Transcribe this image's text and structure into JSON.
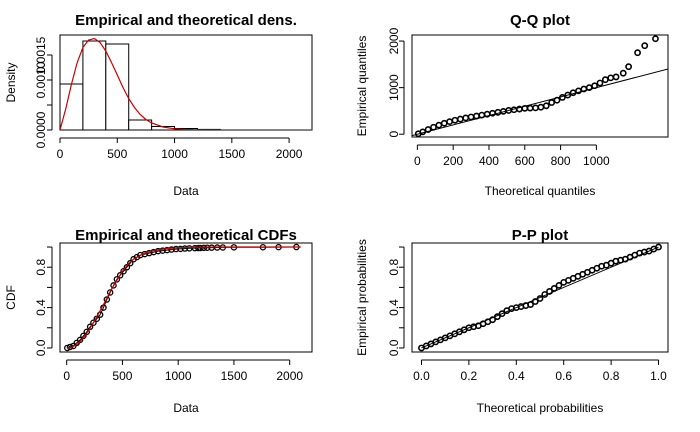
{
  "chart_data": [
    {
      "id": "dens",
      "type": "bar",
      "title": "Empirical and theoretical dens.",
      "xlabel": "Data",
      "ylabel": "Density",
      "xlim": [
        0,
        2200
      ],
      "ylim": [
        0,
        0.0019
      ],
      "xticks": [
        0,
        500,
        1000,
        1500,
        2000
      ],
      "xtick_labels": [
        "0",
        "500",
        "1000",
        "1500",
        "2000"
      ],
      "yticks": [
        0,
        0.0005,
        0.001,
        0.0015
      ],
      "ytick_labels": [
        "0.0000",
        "",
        "0.0010",
        "0.0015"
      ],
      "bins": [
        {
          "x0": 0,
          "x1": 200,
          "density": 0.00092
        },
        {
          "x0": 200,
          "x1": 400,
          "density": 0.00178
        },
        {
          "x0": 400,
          "x1": 600,
          "density": 0.00172
        },
        {
          "x0": 600,
          "x1": 800,
          "density": 0.0002
        },
        {
          "x0": 800,
          "x1": 1000,
          "density": 7e-05
        },
        {
          "x0": 1000,
          "x1": 1200,
          "density": 3e-05
        },
        {
          "x0": 1200,
          "x1": 1400,
          "density": 1.2e-05
        }
      ],
      "density_curve": {
        "color": "#cc0000",
        "x": [
          0,
          50,
          100,
          150,
          200,
          250,
          300,
          350,
          400,
          450,
          500,
          550,
          600,
          650,
          700,
          750,
          800,
          900,
          1000,
          1100,
          1200,
          1400,
          1600,
          1800,
          2000,
          2200
        ],
        "y": [
          0,
          0.00042,
          0.00092,
          0.00135,
          0.00165,
          0.0018,
          0.00183,
          0.00175,
          0.00158,
          0.00135,
          0.0011,
          0.00085,
          0.00063,
          0.00045,
          0.00031,
          0.00021,
          0.00014,
          6e-05,
          2.5e-05,
          1e-05,
          4e-06,
          8e-07,
          0,
          0,
          0,
          0
        ]
      }
    },
    {
      "id": "qq",
      "type": "scatter",
      "title": "Q-Q plot",
      "xlabel": "Theoretical quantiles",
      "ylabel": "Empirical quantiles",
      "xlim": [
        -30,
        1400
      ],
      "ylim": [
        -60,
        2130
      ],
      "xticks": [
        0,
        200,
        400,
        600,
        800,
        1000
      ],
      "xtick_labels": [
        "0",
        "200",
        "400",
        "600",
        "800",
        "1000"
      ],
      "yticks": [
        0,
        1000,
        2000
      ],
      "ytick_labels": [
        "0",
        "1000",
        "2000"
      ],
      "line": {
        "x": [
          -30,
          1400
        ],
        "y": [
          -30,
          1400
        ]
      },
      "points": {
        "x": [
          5,
          30,
          60,
          90,
          120,
          150,
          180,
          210,
          240,
          270,
          300,
          330,
          360,
          390,
          420,
          450,
          480,
          510,
          540,
          570,
          600,
          630,
          660,
          690,
          720,
          750,
          780,
          810,
          840,
          870,
          900,
          930,
          960,
          990,
          1020,
          1050,
          1080,
          1110,
          1150,
          1180,
          1230,
          1270,
          1330
        ],
        "y": [
          10,
          50,
          100,
          150,
          195,
          235,
          270,
          300,
          325,
          350,
          370,
          390,
          410,
          430,
          450,
          470,
          490,
          510,
          525,
          540,
          555,
          560,
          565,
          580,
          610,
          680,
          730,
          790,
          840,
          890,
          930,
          970,
          1000,
          1040,
          1100,
          1170,
          1210,
          1230,
          1310,
          1450,
          1750,
          1900,
          2050
        ]
      }
    },
    {
      "id": "cdf",
      "type": "line",
      "title": "Empirical and theoretical CDFs",
      "xlabel": "Data",
      "ylabel": "CDF",
      "xlim": [
        -60,
        2200
      ],
      "ylim": [
        -0.04,
        1.04
      ],
      "xticks": [
        0,
        500,
        1000,
        1500,
        2000
      ],
      "xtick_labels": [
        "0",
        "500",
        "1000",
        "1500",
        "2000"
      ],
      "yticks": [
        0,
        0.2,
        0.4,
        0.6,
        0.8,
        1.0
      ],
      "ytick_labels": [
        "0.0",
        "",
        "0.4",
        "",
        "0.8",
        ""
      ],
      "theoretical": {
        "color": "#cc0000",
        "x": [
          0,
          50,
          100,
          150,
          200,
          250,
          300,
          350,
          400,
          450,
          500,
          550,
          600,
          700,
          800,
          900,
          1000,
          1100,
          1200,
          1400,
          1600,
          1800,
          2100
        ],
        "y": [
          0,
          0.01,
          0.04,
          0.1,
          0.18,
          0.27,
          0.37,
          0.47,
          0.58,
          0.67,
          0.76,
          0.83,
          0.88,
          0.94,
          0.97,
          0.985,
          0.993,
          0.997,
          0.999,
          1.0,
          1.0,
          1.0,
          1.0
        ]
      },
      "empirical": {
        "x": [
          5,
          30,
          60,
          90,
          120,
          150,
          180,
          210,
          240,
          270,
          300,
          330,
          360,
          390,
          420,
          450,
          480,
          510,
          540,
          570,
          600,
          630,
          660,
          700,
          740,
          780,
          820,
          860,
          900,
          940,
          980,
          1020,
          1060,
          1100,
          1150,
          1180,
          1200,
          1230,
          1260,
          1300,
          1350,
          1400,
          1500,
          1760,
          1900,
          2060
        ],
        "y": [
          0.0,
          0.01,
          0.02,
          0.05,
          0.08,
          0.12,
          0.16,
          0.21,
          0.25,
          0.29,
          0.33,
          0.4,
          0.48,
          0.55,
          0.62,
          0.68,
          0.72,
          0.76,
          0.8,
          0.84,
          0.88,
          0.9,
          0.92,
          0.93,
          0.94,
          0.95,
          0.96,
          0.965,
          0.97,
          0.975,
          0.98,
          0.982,
          0.985,
          0.987,
          0.989,
          0.99,
          0.991,
          0.992,
          0.993,
          0.994,
          0.995,
          0.996,
          0.997,
          0.998,
          0.999,
          1.0
        ]
      }
    },
    {
      "id": "pp",
      "type": "scatter",
      "title": "P-P plot",
      "xlabel": "Theoretical probabilities",
      "ylabel": "Empirical probabilities",
      "xlim": [
        -0.04,
        1.04
      ],
      "ylim": [
        -0.04,
        1.04
      ],
      "xticks": [
        0,
        0.2,
        0.4,
        0.6,
        0.8,
        1.0
      ],
      "xtick_labels": [
        "0.0",
        "0.2",
        "0.4",
        "0.6",
        "0.8",
        "1.0"
      ],
      "yticks": [
        0,
        0.2,
        0.4,
        0.6,
        0.8,
        1.0
      ],
      "ytick_labels": [
        "0.0",
        "",
        "0.4",
        "",
        "0.8",
        ""
      ],
      "line": {
        "x": [
          0,
          1
        ],
        "y": [
          0,
          1
        ]
      },
      "points": {
        "x": [
          0.0,
          0.02,
          0.04,
          0.06,
          0.08,
          0.1,
          0.12,
          0.14,
          0.16,
          0.18,
          0.2,
          0.22,
          0.24,
          0.26,
          0.28,
          0.3,
          0.32,
          0.34,
          0.36,
          0.38,
          0.4,
          0.42,
          0.44,
          0.46,
          0.48,
          0.5,
          0.52,
          0.54,
          0.56,
          0.58,
          0.6,
          0.62,
          0.64,
          0.66,
          0.68,
          0.7,
          0.72,
          0.74,
          0.76,
          0.78,
          0.8,
          0.82,
          0.84,
          0.86,
          0.88,
          0.9,
          0.92,
          0.94,
          0.96,
          0.98,
          1.0
        ],
        "y": [
          0.0,
          0.02,
          0.04,
          0.06,
          0.08,
          0.1,
          0.12,
          0.14,
          0.16,
          0.18,
          0.2,
          0.21,
          0.22,
          0.24,
          0.26,
          0.28,
          0.31,
          0.34,
          0.37,
          0.39,
          0.4,
          0.41,
          0.42,
          0.43,
          0.46,
          0.49,
          0.53,
          0.56,
          0.59,
          0.62,
          0.65,
          0.67,
          0.69,
          0.71,
          0.73,
          0.75,
          0.77,
          0.79,
          0.81,
          0.82,
          0.84,
          0.86,
          0.87,
          0.88,
          0.9,
          0.92,
          0.94,
          0.95,
          0.96,
          0.98,
          1.0
        ]
      }
    }
  ]
}
